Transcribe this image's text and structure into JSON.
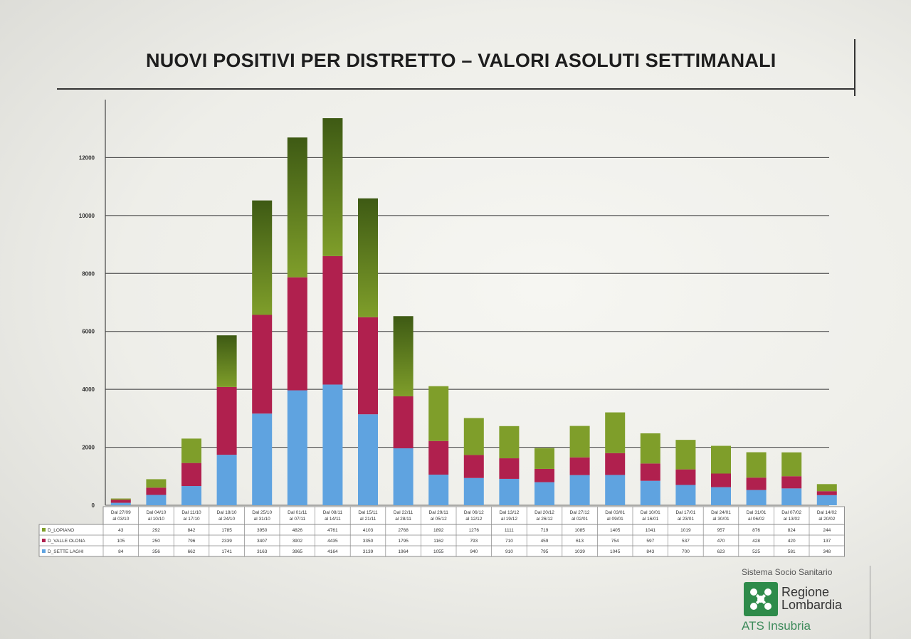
{
  "title": "NUOVI POSITIVI PER DISTRETTO – VALORI ASOLUTI SETTIMANALI",
  "colors": {
    "lomb_green": "#2e8b4a",
    "sette_laghi": "#5fa3e0",
    "valle_olona": "#b0204e",
    "lopiano": "#7f9e2a",
    "lopiano_dark": "#3e5a14"
  },
  "footer": {
    "system": "Sistema Socio Sanitario",
    "region_line1": "Regione",
    "region_line2": "Lombardia",
    "ats": "ATS Insubria"
  },
  "chart_data": {
    "type": "bar",
    "stacked": true,
    "title": "NUOVI POSITIVI PER DISTRETTO – VALORI ASOLUTI SETTIMANALI",
    "ylim": [
      0,
      14000
    ],
    "yticks": [
      "0",
      "2000",
      "4000",
      "6000",
      "8000",
      "10000",
      "12000"
    ],
    "grid": true,
    "categories": [
      [
        "Dal 27/09",
        "al 03/10"
      ],
      [
        "Dal 04/10",
        "al 10/10"
      ],
      [
        "Dal 11/10",
        "al 17/10"
      ],
      [
        "Dal 18/10",
        "al 24/10"
      ],
      [
        "Dal 25/10",
        "al 31/10"
      ],
      [
        "Dal 01/11",
        "al 07/11"
      ],
      [
        "Dal 08/11",
        "al 14/11"
      ],
      [
        "Dal 15/11",
        "al 21/11"
      ],
      [
        "Dal 22/11",
        "al 28/11"
      ],
      [
        "Dal 29/11",
        "al 05/12"
      ],
      [
        "Dal 06/12",
        "al 12/12"
      ],
      [
        "Dal 13/12",
        "al 19/12"
      ],
      [
        "Dal 20/12",
        "al 26/12"
      ],
      [
        "Dal 27/12",
        "al 02/01"
      ],
      [
        "Dal 03/01",
        "al 09/01"
      ],
      [
        "Dal 10/01",
        "al 16/01"
      ],
      [
        "Dal 17/01",
        "al 23/01"
      ],
      [
        "Dal 24/01",
        "al 30/01"
      ],
      [
        "Dal 31/01",
        "al 06/02"
      ],
      [
        "Dal 07/02",
        "al 13/02"
      ],
      [
        "Dal 14/02",
        "al 20/02"
      ]
    ],
    "series": [
      {
        "name": "D_SETTE LAGHI",
        "color": "#5fa3e0",
        "values": [
          84,
          356,
          662,
          1741,
          3163,
          3965,
          4164,
          3139,
          1964,
          1055,
          940,
          910,
          795,
          1039,
          1045,
          843,
          700,
          623,
          525,
          581,
          348
        ]
      },
      {
        "name": "D_VALLE OLONA",
        "color": "#b0204e",
        "values": [
          105,
          250,
          796,
          2339,
          3407,
          3902,
          4435,
          3350,
          1795,
          1162,
          793,
          710,
          459,
          613,
          754,
          597,
          537,
          470,
          428,
          420,
          137
        ]
      },
      {
        "name": "D_LOPIANO",
        "color": "#7f9e2a",
        "values": [
          43,
          292,
          842,
          1785,
          3950,
          4826,
          4761,
          4103,
          2768,
          1892,
          1276,
          1111,
          719,
          1085,
          1405,
          1041,
          1019,
          957,
          876,
          824,
          244
        ]
      }
    ]
  }
}
